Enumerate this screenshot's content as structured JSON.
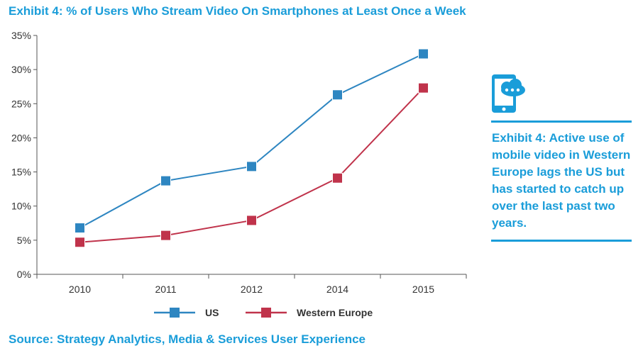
{
  "title": "Exhibit 4: % of Users Who Stream Video On Smartphones at Least Once a Week",
  "sidebar": {
    "icon": "smartphone-cloud-icon",
    "text": "Exhibit 4: Active use of mobile video in Western Europe lags the US but has started to catch up over the last past two years."
  },
  "source": "Source: Strategy Analytics, Media & Services User Experience",
  "colors": {
    "accent": "#1a9dd9",
    "us": "#2e86c1",
    "western_europe": "#c0334b"
  },
  "chart_data": {
    "type": "line",
    "title": "Exhibit 4: % of Users Who Stream Video On Smartphones at Least Once a Week",
    "xlabel": "",
    "ylabel": "",
    "categories": [
      "2010",
      "2011",
      "2012",
      "2014",
      "2015"
    ],
    "ylim": [
      0,
      35
    ],
    "yticks": [
      "0%",
      "5%",
      "10%",
      "15%",
      "20%",
      "25%",
      "30%",
      "35%"
    ],
    "grid": false,
    "legend": "bottom",
    "series": [
      {
        "name": "US",
        "color": "#2e86c1",
        "values": [
          6.8,
          13.7,
          15.8,
          26.3,
          32.3
        ]
      },
      {
        "name": "Western Europe",
        "color": "#c0334b",
        "values": [
          4.7,
          5.7,
          7.9,
          14.1,
          27.3
        ]
      }
    ]
  }
}
